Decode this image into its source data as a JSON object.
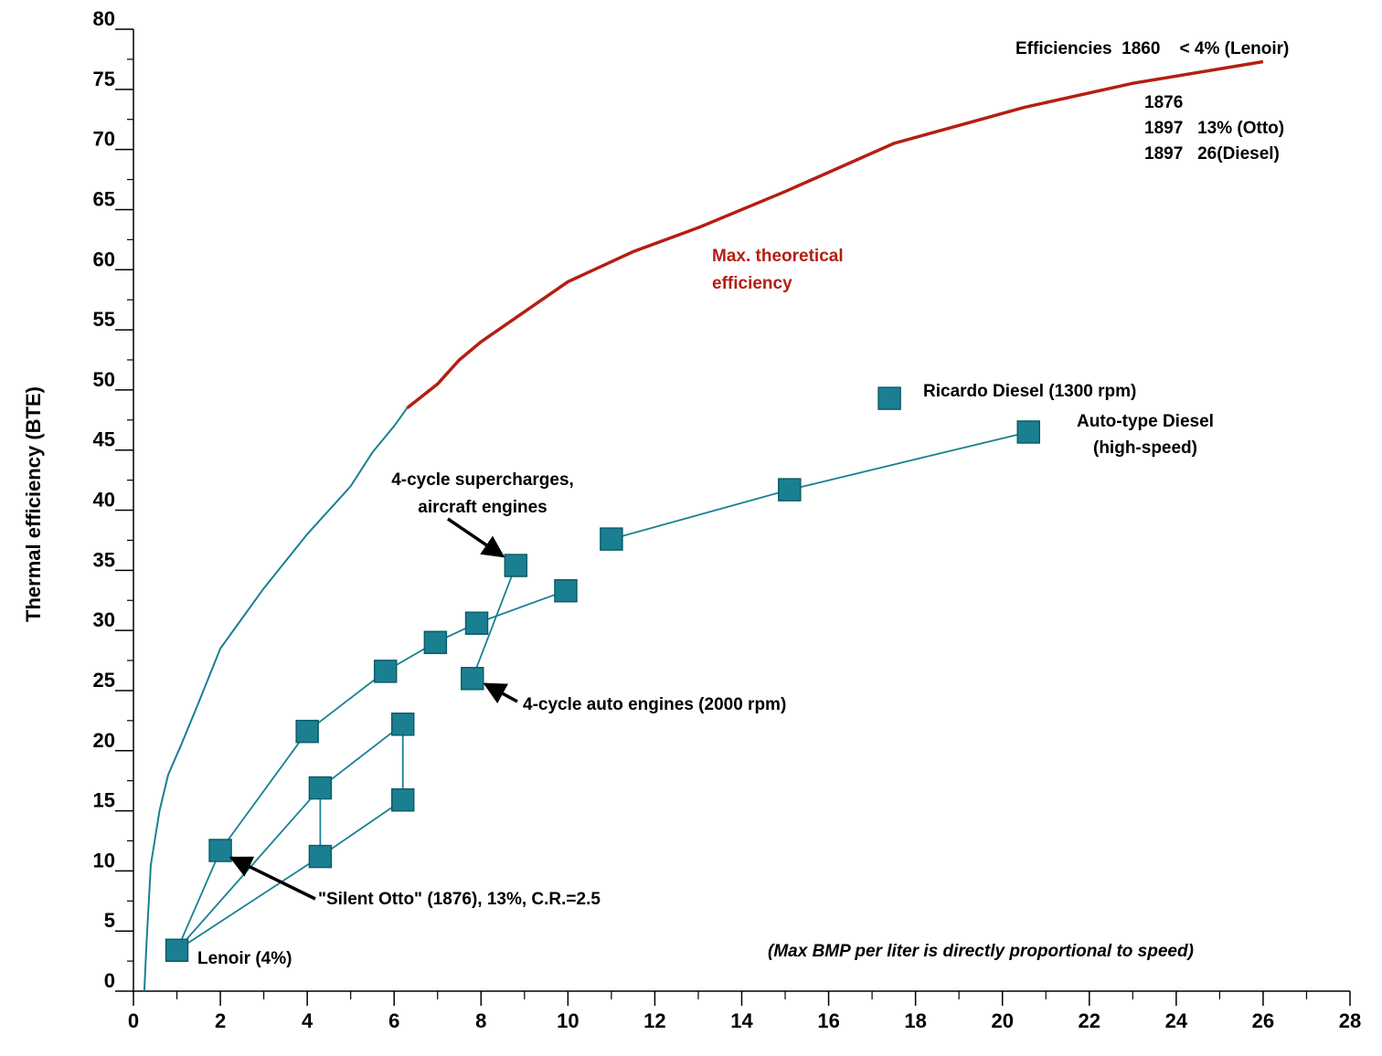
{
  "chart_data": {
    "type": "scatter",
    "title": "",
    "xlabel": "",
    "ylabel": "Thermal efficiency (BTE)",
    "xlim": [
      0,
      28
    ],
    "ylim": [
      0,
      80
    ],
    "grid": false,
    "x_ticks": [
      "0",
      "2",
      "4",
      "6",
      "8",
      "10",
      "12",
      "14",
      "16",
      "18",
      "20",
      "22",
      "24",
      "26",
      "28"
    ],
    "y_ticks": [
      "0",
      "5",
      "10",
      "15",
      "20",
      "25",
      "30",
      "35",
      "40",
      "45",
      "50",
      "55",
      "60",
      "65",
      "70",
      "75",
      "80"
    ],
    "colors": {
      "theoretical": "#b41f12",
      "engines": "#1a8091",
      "text": "#000000"
    },
    "series": [
      {
        "name": "Max. theoretical efficiency",
        "kind": "line",
        "points": [
          [
            0.25,
            0
          ],
          [
            0.3,
            4
          ],
          [
            0.4,
            10.5
          ],
          [
            0.6,
            15
          ],
          [
            0.8,
            18
          ],
          [
            1.1,
            20.5
          ],
          [
            1.5,
            24
          ],
          [
            2,
            28.5
          ],
          [
            2.5,
            31
          ],
          [
            3,
            33.5
          ],
          [
            4,
            38
          ],
          [
            5,
            42
          ],
          [
            5.5,
            44.8
          ],
          [
            6,
            47
          ],
          [
            6.3,
            48.5
          ],
          [
            7,
            50.5
          ],
          [
            7.5,
            52.5
          ],
          [
            8,
            54
          ],
          [
            9,
            56.5
          ],
          [
            10,
            59
          ],
          [
            11.5,
            61.5
          ],
          [
            13,
            63.5
          ],
          [
            15,
            66.5
          ],
          [
            17.5,
            70.5
          ],
          [
            19,
            72
          ],
          [
            20.5,
            73.5
          ],
          [
            23,
            75.5
          ],
          [
            26,
            77.3
          ]
        ]
      },
      {
        "name": "Engines",
        "kind": "markers",
        "points": [
          [
            1.0,
            3.4
          ],
          [
            2.0,
            11.7
          ],
          [
            4.3,
            11.2
          ],
          [
            6.2,
            15.9
          ],
          [
            4.3,
            16.9
          ],
          [
            6.2,
            22.2
          ],
          [
            4.0,
            21.6
          ],
          [
            5.8,
            26.6
          ],
          [
            6.95,
            29.0
          ],
          [
            7.9,
            30.6
          ],
          [
            9.95,
            33.3
          ],
          [
            7.8,
            26.0
          ],
          [
            8.8,
            35.4
          ],
          [
            11.0,
            37.6
          ],
          [
            15.1,
            41.7
          ],
          [
            20.6,
            46.5
          ],
          [
            17.4,
            49.3
          ]
        ],
        "segments": [
          [
            [
              1.0,
              3.4
            ],
            [
              2.0,
              11.7
            ]
          ],
          [
            [
              1.0,
              3.4
            ],
            [
              4.3,
              11.2
            ]
          ],
          [
            [
              4.3,
              11.2
            ],
            [
              6.2,
              15.9
            ]
          ],
          [
            [
              1.0,
              3.4
            ],
            [
              4.3,
              16.9
            ]
          ],
          [
            [
              4.3,
              16.9
            ],
            [
              6.2,
              22.2
            ]
          ],
          [
            [
              4.3,
              11.2
            ],
            [
              4.3,
              16.9
            ]
          ],
          [
            [
              6.2,
              15.9
            ],
            [
              6.2,
              22.2
            ]
          ],
          [
            [
              2.0,
              11.7
            ],
            [
              4.0,
              21.6
            ]
          ],
          [
            [
              4.0,
              21.6
            ],
            [
              5.8,
              26.6
            ]
          ],
          [
            [
              5.8,
              26.6
            ],
            [
              6.95,
              29.0
            ]
          ],
          [
            [
              6.95,
              29.0
            ],
            [
              7.9,
              30.6
            ]
          ],
          [
            [
              7.9,
              30.6
            ],
            [
              9.95,
              33.3
            ]
          ],
          [
            [
              7.8,
              26.0
            ],
            [
              8.8,
              35.4
            ]
          ],
          [
            [
              11.0,
              37.6
            ],
            [
              15.1,
              41.7
            ]
          ],
          [
            [
              15.1,
              41.7
            ],
            [
              20.6,
              46.5
            ]
          ]
        ]
      }
    ],
    "annotations": {
      "efficiencies": [
        "Efficiencies  1860    < 4% (Lenoir)",
        "1876",
        "1897   13% (Otto)",
        "1897   26(Diesel)"
      ],
      "theoretical": [
        "Max. theoretical",
        "efficiency"
      ],
      "ricardo": "Ricardo Diesel (1300 rpm)",
      "auto_diesel": [
        "Auto-type Diesel",
        "(high-speed)"
      ],
      "supercharged": [
        "4-cycle supercharges,",
        "aircraft engines"
      ],
      "auto_engines": "4-cycle auto engines (2000 rpm)",
      "silent_otto": "\"Silent Otto\" (1876), 13%, C.R.=2.5",
      "lenoir": "Lenoir (4%)",
      "note": "(Max BMP per liter is directly proportional to speed)"
    }
  }
}
